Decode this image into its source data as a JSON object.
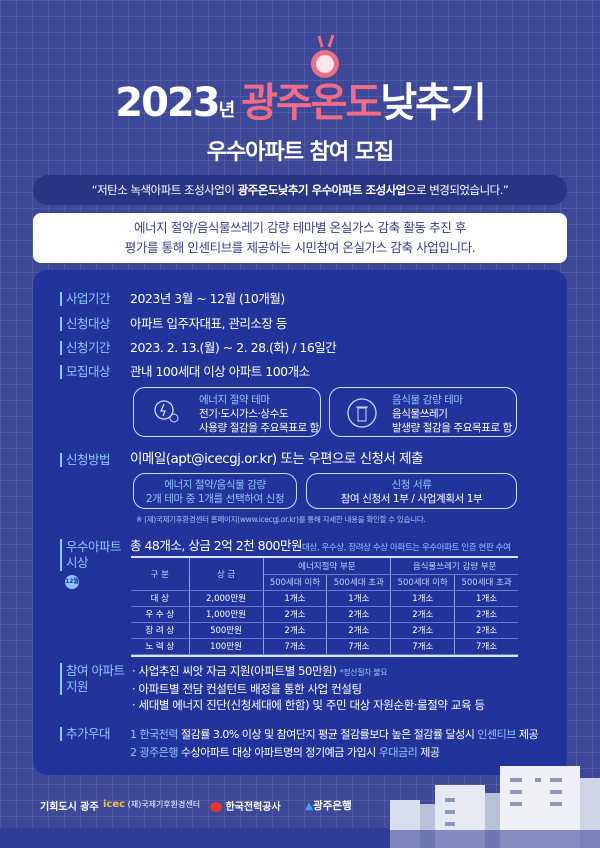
{
  "header": {
    "year": "2023",
    "year_suffix": "년",
    "title_pink": "광주온도",
    "title_white": "낮추기",
    "subtitle": "우수아파트 참여 모집"
  },
  "quote": {
    "open": "“저탄소 녹색아파트 조성사업이 ",
    "bold": "광주온도낮추기 우수아파트 조성사업",
    "close": "으로 변경되었습니다.”"
  },
  "intro": {
    "line1": "에너지 절약/음식물쓰레기 감량 테마별 온실가스 감축 활동 추진 후",
    "line2": "평가를 통해 인센티브를 제공하는 시민참여 온실가스 감축 사업입니다."
  },
  "info": [
    {
      "label": "사업기간",
      "value": "2023년 3월 ~ 12월 (10개월)"
    },
    {
      "label": "신청대상",
      "value": "아파트 입주자대표, 관리소장 등"
    },
    {
      "label": "신청기간",
      "value": "2023. 2. 13.(월) ~ 2. 28.(화) / 16일간"
    },
    {
      "label": "모집대상",
      "value": "관내 100세대 이상 아파트 100개소"
    }
  ],
  "themes": [
    {
      "icon": "energy-head-icon",
      "title": "에너지 절약 테마",
      "line1": "전기·도시가스·상수도",
      "line2": "사용량 절감을 주요목표로 함"
    },
    {
      "icon": "food-waste-bin-icon",
      "title": "음식물 감량 테마",
      "line1": "음식물쓰레기",
      "line2": "발생량 절감을 주요목표로 함"
    }
  ],
  "method": {
    "label": "신청방법",
    "value": "이메일(apt@icecgj.or.kr) 또는 우편으로 신청서 제출",
    "box1": {
      "line1": "에너지 절약/음식물 감량",
      "line2": "2개 테마 중 1개를 선택하여 신청"
    },
    "box2": {
      "line1": "신청 서류",
      "line2": "참여 신청서 1부 / 사업계획서 1부"
    },
    "note": "※ (재)국제기후환경센터 홈페이지(www.icecgj.or.kr)를 통해 자세한 내용을 확인할 수 있습니다."
  },
  "award": {
    "label1": "우수아파트",
    "label2": "시상",
    "badge": "12월",
    "summary": "총 48개소, 상금 2억 2천 800만원",
    "summary_note": "대상, 우수상, 장려상 수상 아파트는 우수아파트 인증 현판 수여",
    "table": {
      "h_category": "구 분",
      "h_prize": "상 금",
      "h_energy": "에너지절약 부문",
      "h_food": "음식물쓰레기 감량 부문",
      "h_sub": [
        "500세대 이하",
        "500세대 초과",
        "500세대 이하",
        "500세대 초과"
      ],
      "rows": [
        [
          "대 상",
          "2,000만원",
          "1개소",
          "1개소",
          "1개소",
          "1개소"
        ],
        [
          "우 수 상",
          "1,000만원",
          "2개소",
          "2개소",
          "2개소",
          "2개소"
        ],
        [
          "장 려 상",
          "500만원",
          "2개소",
          "2개소",
          "2개소",
          "2개소"
        ],
        [
          "노 력 상",
          "100만원",
          "7개소",
          "7개소",
          "7개소",
          "7개소"
        ]
      ]
    }
  },
  "support": {
    "label1": "참여 아파트",
    "label2": "지원",
    "items": [
      "· 사업추진 씨앗 자금 지원(아파트별 50만원)",
      "· 아파트별 전담 컨설턴트 배정을 통한 사업 컨설팅",
      "· 세대별 에너지 진단(신청세대에 한함) 및 주민 대상 자원순환·물절약 교육 등"
    ],
    "note": "*정산절차 불요"
  },
  "extra": {
    "label": "추가우대",
    "items": [
      {
        "num": "1",
        "org": "한국전력",
        "text": "절감률 3.0% 이상 및 참여단지 평균 절감률보다 높은 절감률 달성시 ",
        "hl": "인센티브",
        "end": " 제공"
      },
      {
        "num": "2",
        "org": "광주은행",
        "text": "수상아파트 대상 아파트명의 정기예금 가입시 ",
        "hl": "우대금리",
        "end": " 제공"
      }
    ]
  },
  "footer": {
    "logos": [
      "기회도시 광주",
      "(재)국제기후환경센터",
      "한국전력공사",
      "광주은행"
    ]
  },
  "colors": {
    "background": "#3e4899",
    "panel": "#23339c",
    "accent_pink": "#f06b86",
    "accent_blue": "#8fc6ff"
  }
}
